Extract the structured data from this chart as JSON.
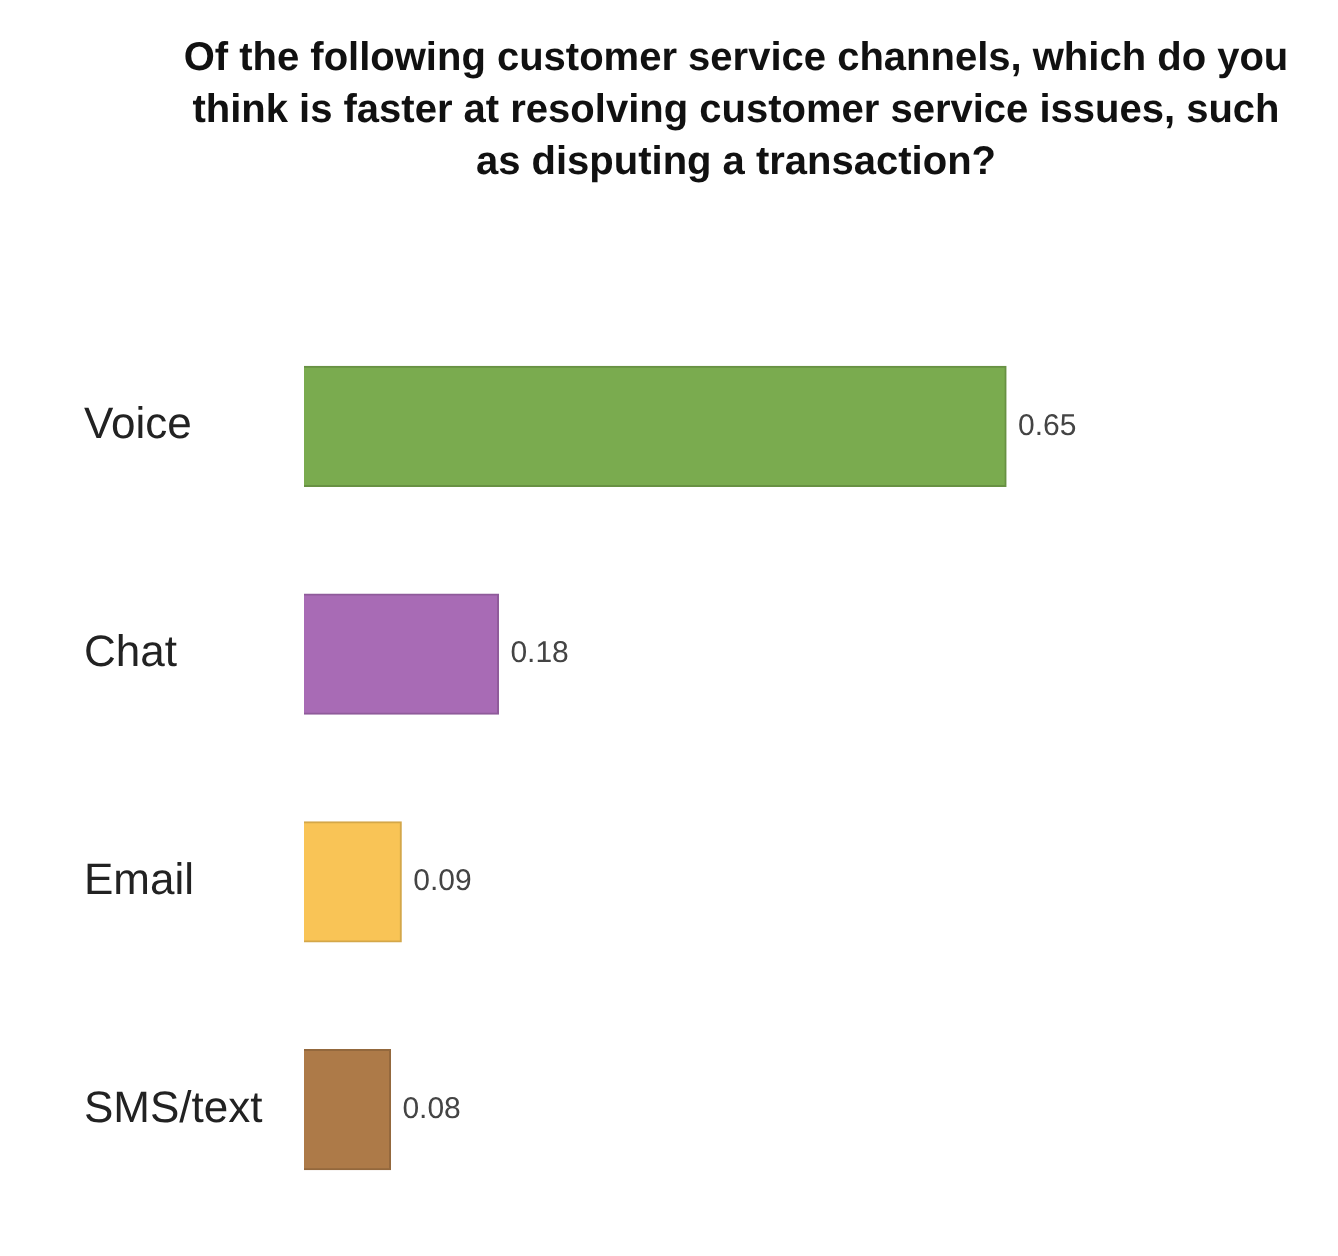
{
  "chart_data": {
    "type": "bar",
    "orientation": "horizontal",
    "title": "Of the following customer service channels, which do you think is faster at resolving customer service issues, such as disputing a transaction?",
    "categories": [
      "Voice",
      "Chat",
      "Email",
      "SMS/text"
    ],
    "values": [
      0.65,
      0.18,
      0.09,
      0.08
    ],
    "colors": [
      "#7aab4f",
      "#a86bb5",
      "#f9c456",
      "#ad7a48"
    ],
    "data_labels": true
  }
}
